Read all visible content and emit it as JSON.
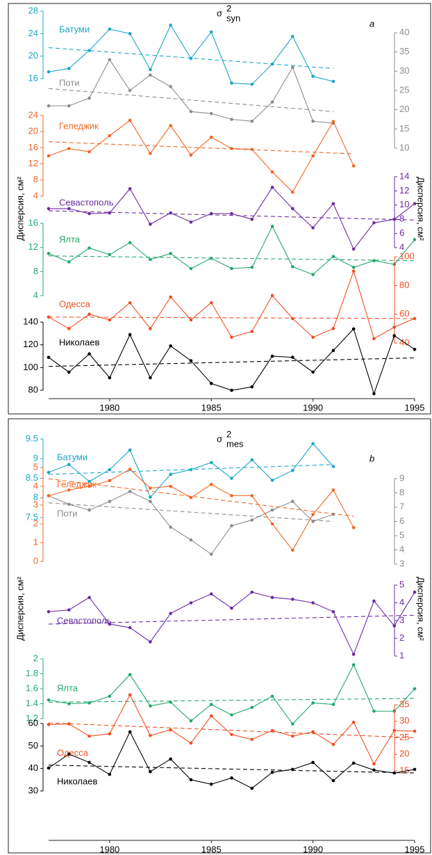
{
  "chart_data": [
    {
      "type": "line",
      "title": "σ",
      "title_sup": "2",
      "title_sub": "syn",
      "panel_label": "a",
      "ylabel": "Дисперсия, см²",
      "y2label": "Дисперсия, см²",
      "x": [
        1977,
        1978,
        1979,
        1980,
        1981,
        1982,
        1983,
        1984,
        1985,
        1986,
        1987,
        1988,
        1989,
        1990,
        1991,
        1992,
        1993,
        1994,
        1995
      ],
      "xlim": [
        1977,
        1995
      ],
      "xticks": [
        1980,
        1985,
        1990,
        1995
      ],
      "series": [
        {
          "name": "Батуми",
          "color": "#1aa7c8",
          "axis": "left",
          "ylim": [
            16,
            28
          ],
          "yticks": [
            16,
            20,
            24,
            28
          ],
          "values": [
            17.2,
            17.8,
            21,
            24.8,
            24,
            17.6,
            25.5,
            19.6,
            24.3,
            15.2,
            15,
            18.6,
            23.5,
            16.4,
            15.5,
            null,
            null,
            null,
            null
          ],
          "trend": [
            21.5,
            17.8
          ]
        },
        {
          "name": "Поти",
          "color": "#8c8c8c",
          "axis": "right",
          "ylim": [
            10,
            40
          ],
          "yticks": [
            10,
            15,
            20,
            25,
            30,
            35,
            40
          ],
          "values": [
            21,
            21,
            23,
            33,
            25,
            29,
            26,
            19.5,
            19,
            17.5,
            17,
            22,
            31,
            17,
            16.5,
            null,
            null,
            null,
            null
          ],
          "trend": [
            25.5,
            19.5
          ]
        },
        {
          "name": "Геледжик",
          "color": "#f26522",
          "axis": "left",
          "ylim": [
            4,
            24
          ],
          "yticks": [
            4,
            8,
            12,
            16,
            20,
            24
          ],
          "values": [
            14,
            15.8,
            15,
            19,
            22.8,
            14.6,
            21.5,
            14.2,
            18.6,
            15.8,
            15.6,
            10,
            5,
            14,
            22.5,
            11.5,
            null,
            null,
            null
          ],
          "trend": [
            17.5,
            14.5
          ]
        },
        {
          "name": "Севастополь",
          "color": "#6a2ca0",
          "axis": "right",
          "ylim": [
            4,
            14
          ],
          "yticks": [
            4,
            6,
            8,
            10,
            12,
            14
          ],
          "values": [
            9.5,
            9.5,
            8.8,
            8.9,
            12.3,
            7.3,
            8.9,
            7.6,
            8.8,
            8.8,
            8,
            12.5,
            9.5,
            6.8,
            10.2,
            3.8,
            7.5,
            8,
            10.2
          ],
          "trend": [
            9.2,
            7.9
          ]
        },
        {
          "name": "Ялта",
          "color": "#22a86b",
          "axis": "left",
          "ylim": [
            4,
            16
          ],
          "yticks": [
            4,
            8,
            12,
            16
          ],
          "values": [
            11,
            9.6,
            11.9,
            10.8,
            12.8,
            10,
            11,
            8.5,
            10.2,
            8.5,
            8.7,
            15.5,
            8.8,
            7.5,
            10.5,
            8.7,
            9.8,
            9.2,
            13.3
          ],
          "trend": [
            10.6,
            9.8
          ]
        },
        {
          "name": "Одесса",
          "color": "#f04e23",
          "axis": "right",
          "ylim": [
            40,
            100
          ],
          "yticks": [
            40,
            60,
            80,
            100
          ],
          "values": [
            58,
            50,
            60,
            56,
            68,
            50,
            72,
            56,
            68,
            44,
            48,
            73,
            57,
            44,
            50,
            90,
            43,
            51,
            57
          ],
          "trend": [
            58,
            57
          ]
        },
        {
          "name": "Николаев",
          "color": "#000000",
          "axis": "left",
          "ylim": [
            80,
            140
          ],
          "yticks": [
            80,
            100,
            120,
            140
          ],
          "values": [
            109,
            96,
            112,
            91,
            129,
            91,
            119,
            106,
            86,
            80,
            83,
            110,
            109,
            96,
            115,
            134,
            77,
            128,
            116
          ],
          "trend": [
            101,
            108.5
          ]
        }
      ]
    },
    {
      "type": "line",
      "title": "σ",
      "title_sup": "2",
      "title_sub": "mes",
      "panel_label": "b",
      "ylabel": "Дисперсия, см²",
      "y2label": "Дисперсия, см²",
      "x": [
        1977,
        1978,
        1979,
        1980,
        1981,
        1982,
        1983,
        1984,
        1985,
        1986,
        1987,
        1988,
        1989,
        1990,
        1991,
        1992,
        1993,
        1994,
        1995
      ],
      "xlim": [
        1977,
        1995
      ],
      "xticks": [
        1980,
        1985,
        1990,
        1995
      ],
      "series": [
        {
          "name": "Батуми",
          "color": "#1aa7c8",
          "axis": "left",
          "ylim": [
            7.5,
            9.5
          ],
          "yticks": [
            7.5,
            8,
            8.5,
            9,
            9.5
          ],
          "values": [
            8.65,
            8.85,
            8.42,
            8.72,
            9.22,
            8.02,
            8.6,
            8.72,
            8.9,
            8.5,
            8.97,
            8.45,
            8.7,
            9.38,
            8.8,
            null,
            null,
            null,
            null
          ],
          "trend": [
            8.6,
            8.85
          ]
        },
        {
          "name": "Поти",
          "color": "#8c8c8c",
          "axis": "right",
          "ylim": [
            3,
            9
          ],
          "yticks": [
            3,
            4,
            5,
            6,
            7,
            8,
            9
          ],
          "values": [
            7.8,
            7.2,
            6.8,
            7.4,
            8.1,
            7.4,
            5.6,
            4.7,
            3.7,
            5.7,
            6.1,
            6.8,
            7.4,
            6,
            6.5,
            null,
            null,
            null,
            null
          ],
          "trend": [
            7.3,
            6
          ]
        },
        {
          "name": "Геледжик",
          "color": "#f26522",
          "axis": "left",
          "ylim": [
            0,
            5
          ],
          "yticks": [
            0,
            1,
            2,
            3,
            4,
            5
          ],
          "values": [
            3.5,
            3.8,
            4,
            4.3,
            4.9,
            3.9,
            4,
            3.4,
            4.1,
            3.5,
            3.5,
            2,
            0.6,
            2.5,
            3.8,
            1.8,
            null,
            null,
            null
          ],
          "trend": [
            4.4,
            2.4
          ]
        },
        {
          "name": "Севастополь",
          "color": "#6a2ca0",
          "axis": "right",
          "ylim": [
            1,
            5
          ],
          "yticks": [
            1,
            2,
            3,
            4,
            5
          ],
          "values": [
            3.5,
            3.6,
            4.3,
            2.8,
            2.6,
            1.8,
            3.4,
            4,
            4.5,
            3.7,
            4.6,
            4.3,
            4.2,
            4,
            3.5,
            1.1,
            4.1,
            2.7,
            4.6
          ],
          "trend": [
            2.8,
            3.3
          ]
        },
        {
          "name": "Ялта",
          "color": "#22a86b",
          "axis": "left",
          "ylim": [
            1.2,
            2
          ],
          "yticks": [
            1.2,
            1.4,
            1.6,
            1.8,
            2
          ],
          "values": [
            1.45,
            1.4,
            1.41,
            1.5,
            1.79,
            1.37,
            1.42,
            1.17,
            1.39,
            1.25,
            1.35,
            1.5,
            1.13,
            1.41,
            1.39,
            1.92,
            1.3,
            1.3,
            1.6
          ],
          "trend": [
            1.42,
            1.47
          ]
        },
        {
          "name": "Одесса",
          "color": "#f04e23",
          "axis": "right",
          "ylim": [
            15,
            35
          ],
          "yticks": [
            15,
            20,
            25,
            30,
            35
          ],
          "values": [
            29,
            29.2,
            25.5,
            26.2,
            38,
            25.7,
            27.4,
            23.4,
            31.6,
            26,
            24.5,
            27.2,
            25.5,
            26.8,
            23,
            29.7,
            17.1,
            27.2,
            27
          ],
          "trend": [
            29.5,
            25
          ]
        },
        {
          "name": "Николаев",
          "color": "#000000",
          "axis": "left",
          "ylim": [
            30,
            60
          ],
          "yticks": [
            30,
            40,
            50,
            60
          ],
          "values": [
            40.2,
            46.4,
            42.7,
            37.4,
            56.3,
            38.6,
            44.2,
            35,
            33,
            35.8,
            31.2,
            38.3,
            39.6,
            42.7,
            34.6,
            42.4,
            39.3,
            38,
            39.6
          ],
          "trend": [
            41.5,
            38
          ]
        }
      ]
    }
  ]
}
